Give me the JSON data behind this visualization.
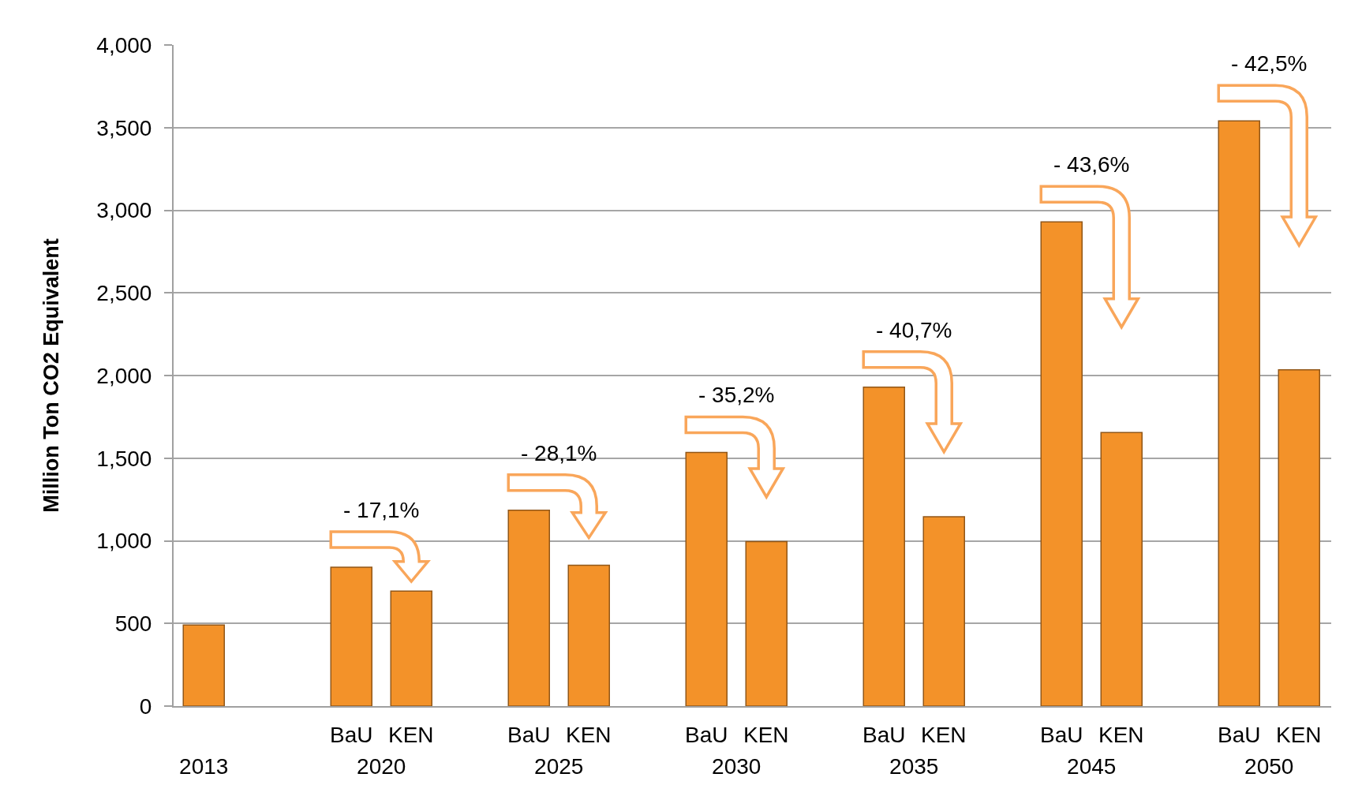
{
  "chart_data": {
    "type": "bar",
    "ylabel": "Million Ton CO2 Equivalent",
    "categories": [
      "2013",
      "2020",
      "2025",
      "2030",
      "2035",
      "2045",
      "2050"
    ],
    "series": [
      {
        "color": "#f39229",
        "values": [
          490,
          null,
          null,
          null,
          null,
          null,
          null
        ]
      },
      {
        "name": "BaU",
        "color": "#f39229",
        "values": [
          null,
          840,
          1185,
          1535,
          1930,
          2930,
          3540
        ]
      },
      {
        "name": "KEN",
        "color": "#f39229",
        "values": [
          null,
          696,
          852,
          995,
          1145,
          1655,
          2035
        ]
      }
    ],
    "ylim": [
      0,
      4000
    ],
    "yticks": [
      0,
      500,
      {
        "value": 1000,
        "label": "1,000"
      },
      {
        "value": 1500,
        "label": "1,500"
      },
      {
        "value": 2000,
        "label": "2,000"
      },
      {
        "value": 2500,
        "label": "2,500"
      },
      {
        "value": 3000,
        "label": "3,000"
      },
      {
        "value": 3500,
        "label": "3,500"
      },
      {
        "value": 4000,
        "label": "4,000"
      }
    ],
    "grid": "y",
    "annotations": [
      "- 17,1%",
      "- 28,1%",
      "- 35,2%",
      "- 40,7%",
      "- 43,6%",
      "- 42,5%"
    ]
  }
}
